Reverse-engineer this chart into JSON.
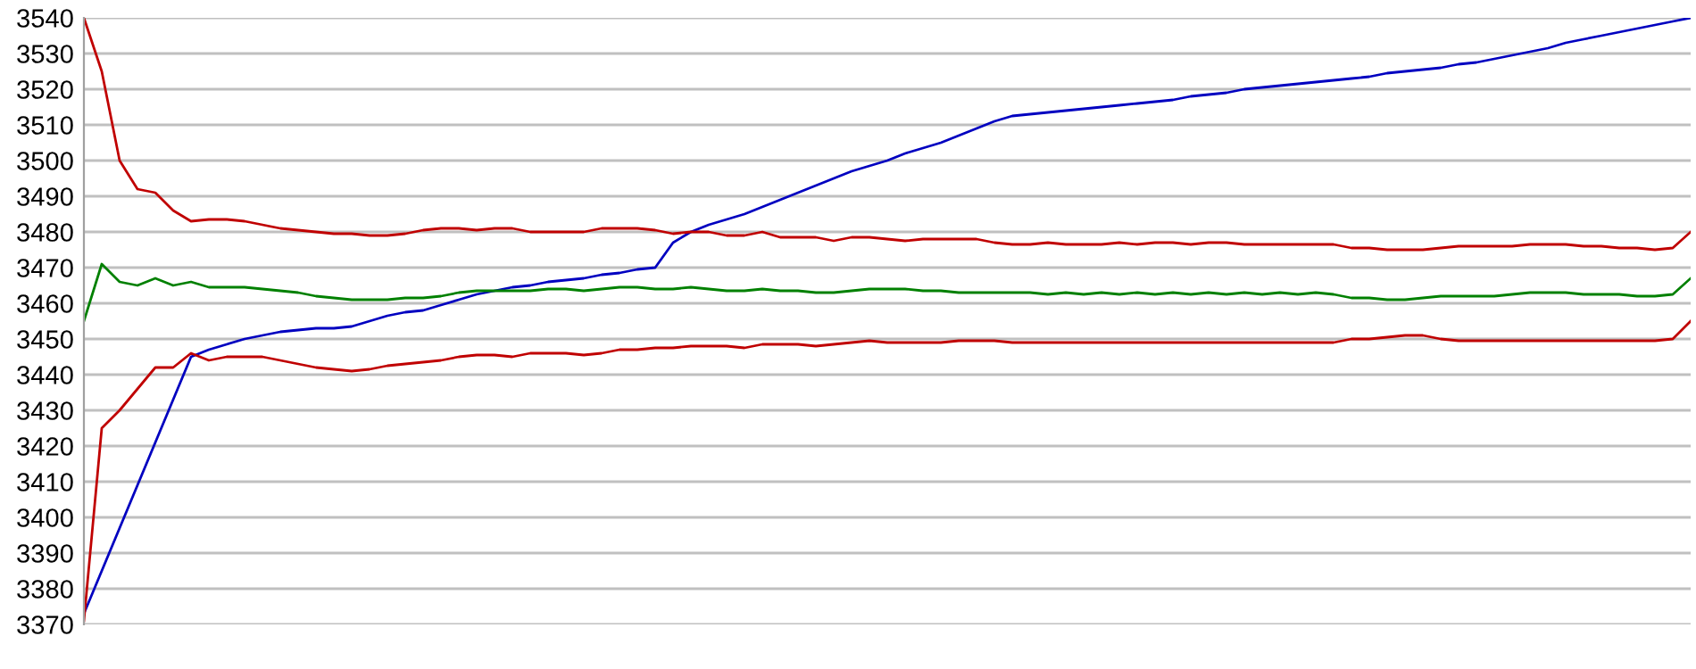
{
  "chart_data": {
    "type": "line",
    "categories": [
      null,
      null,
      null,
      null,
      null,
      null,
      null,
      null,
      null,
      null,
      null,
      null,
      null,
      null,
      null,
      null,
      null,
      null,
      null,
      null,
      null,
      null,
      null,
      null,
      null,
      null,
      null,
      null,
      null,
      null,
      null,
      null,
      null,
      null,
      null,
      null,
      null,
      null,
      null,
      null,
      null,
      null,
      null,
      null,
      null,
      null,
      null,
      null,
      null,
      null,
      null,
      null,
      null,
      null,
      null,
      null,
      null,
      null,
      null,
      null,
      null,
      null,
      null,
      null,
      null,
      null,
      null,
      null,
      null,
      null,
      null,
      null,
      null,
      null,
      null,
      null,
      null,
      null,
      null,
      null,
      null,
      null,
      null,
      null,
      null,
      null,
      null,
      null,
      null,
      null,
      null
    ],
    "series": [
      {
        "color": "#0000c0",
        "values": [
          3373,
          3385,
          3397,
          3409,
          3421,
          3433,
          3445,
          3447,
          3448.5,
          3450,
          3451,
          3452,
          3452.5,
          3453,
          3453,
          3453.5,
          3455,
          3456.5,
          3457.5,
          3458,
          3459.5,
          3461,
          3462.5,
          3463.5,
          3464.5,
          3465,
          3466,
          3466.5,
          3467,
          3468,
          3468.5,
          3469.5,
          3470,
          3477,
          3480,
          3482,
          3483.5,
          3485,
          3487,
          3489,
          3491,
          3493,
          3495,
          3497,
          3498.5,
          3500,
          3502,
          3503.5,
          3505,
          3507,
          3509,
          3511,
          3512.5,
          3513,
          3513.5,
          3514,
          3514.5,
          3515,
          3515.5,
          3516,
          3516.5,
          3517,
          3518,
          3518.5,
          3519,
          3520,
          3520.5,
          3521,
          3521.5,
          3522,
          3522.5,
          3523,
          3523.5,
          3524.5,
          3525,
          3525.5,
          3526,
          3527,
          3527.5,
          3528.5,
          3529.5,
          3530.5,
          3531.5,
          3533,
          3534,
          3535,
          3536,
          3537,
          3538,
          3539,
          3540
        ]
      },
      {
        "color": "#c00000",
        "values": [
          3540,
          3525,
          3500,
          3492,
          3491,
          3486,
          3483,
          3483.5,
          3483.5,
          3483,
          3482,
          3481,
          3480.5,
          3480,
          3479.5,
          3479.5,
          3479,
          3479,
          3479.5,
          3480.5,
          3481,
          3481,
          3480.5,
          3481,
          3481,
          3480,
          3480,
          3480,
          3480,
          3481,
          3481,
          3481,
          3480.5,
          3479.5,
          3480,
          3480,
          3479,
          3479,
          3480,
          3478.5,
          3478.5,
          3478.5,
          3477.5,
          3478.5,
          3478.5,
          3478,
          3477.5,
          3478,
          3478,
          3478,
          3478,
          3477,
          3476.5,
          3476.5,
          3477,
          3476.5,
          3476.5,
          3476.5,
          3477,
          3476.5,
          3477,
          3477,
          3476.5,
          3477,
          3477,
          3476.5,
          3476.5,
          3476.5,
          3476.5,
          3476.5,
          3476.5,
          3475.5,
          3475.5,
          3475,
          3475,
          3475,
          3475.5,
          3476,
          3476,
          3476,
          3476,
          3476.5,
          3476.5,
          3476.5,
          3476,
          3476,
          3475.5,
          3475.5,
          3475,
          3475.5,
          3480
        ]
      },
      {
        "color": "#008000",
        "values": [
          3455,
          3471,
          3466,
          3465,
          3467,
          3465,
          3466,
          3464.5,
          3464.5,
          3464.5,
          3464,
          3463.5,
          3463,
          3462,
          3461.5,
          3461,
          3461,
          3461,
          3461.5,
          3461.5,
          3462,
          3463,
          3463.5,
          3463.5,
          3463.5,
          3463.5,
          3464,
          3464,
          3463.5,
          3464,
          3464.5,
          3464.5,
          3464,
          3464,
          3464.5,
          3464,
          3463.5,
          3463.5,
          3464,
          3463.5,
          3463.5,
          3463,
          3463,
          3463.5,
          3464,
          3464,
          3464,
          3463.5,
          3463.5,
          3463,
          3463,
          3463,
          3463,
          3463,
          3462.5,
          3463,
          3462.5,
          3463,
          3462.5,
          3463,
          3462.5,
          3463,
          3462.5,
          3463,
          3462.5,
          3463,
          3462.5,
          3463,
          3462.5,
          3463,
          3462.5,
          3461.5,
          3461.5,
          3461,
          3461,
          3461.5,
          3462,
          3462,
          3462,
          3462,
          3462.5,
          3463,
          3463,
          3463,
          3462.5,
          3462.5,
          3462.5,
          3462,
          3462,
          3462.5,
          3467
        ]
      },
      {
        "color": "#c00000",
        "values": [
          3371,
          3425,
          3430,
          3436,
          3442,
          3442,
          3446,
          3444,
          3445,
          3445,
          3445,
          3444,
          3443,
          3442,
          3441.5,
          3441,
          3441.5,
          3442.5,
          3443,
          3443.5,
          3444,
          3445,
          3445.5,
          3445.5,
          3445,
          3446,
          3446,
          3446,
          3445.5,
          3446,
          3447,
          3447,
          3447.5,
          3447.5,
          3448,
          3448,
          3448,
          3447.5,
          3448.5,
          3448.5,
          3448.5,
          3448,
          3448.5,
          3449,
          3449.5,
          3449,
          3449,
          3449,
          3449,
          3449.5,
          3449.5,
          3449.5,
          3449,
          3449,
          3449,
          3449,
          3449,
          3449,
          3449,
          3449,
          3449,
          3449,
          3449,
          3449,
          3449,
          3449,
          3449,
          3449,
          3449,
          3449,
          3449,
          3450,
          3450,
          3450.5,
          3451,
          3451,
          3450,
          3449.5,
          3449.5,
          3449.5,
          3449.5,
          3449.5,
          3449.5,
          3449.5,
          3449.5,
          3449.5,
          3449.5,
          3449.5,
          3449.5,
          3450,
          3455
        ]
      }
    ],
    "ylim": [
      3370,
      3540
    ],
    "yticks": [
      3370,
      3380,
      3390,
      3400,
      3410,
      3420,
      3430,
      3440,
      3450,
      3460,
      3470,
      3480,
      3490,
      3500,
      3510,
      3520,
      3530,
      3540
    ],
    "tick_labels": "y",
    "grid": "y",
    "legend": false
  }
}
